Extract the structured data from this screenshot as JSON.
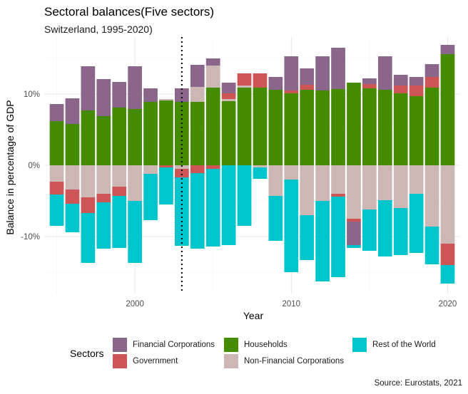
{
  "chart_data": {
    "type": "bar",
    "stacked": true,
    "title": "Sectoral balances(Five sectors)",
    "subtitle": "Switzerland, 1995-2020)",
    "xlabel": "Year",
    "ylabel": "Balance in percentage of GDP",
    "ylim": [
      -18,
      18
    ],
    "xlim": [
      1994.2,
      2020.8
    ],
    "y_ticks": [
      {
        "value": -10,
        "label": "-10%"
      },
      {
        "value": 0,
        "label": "0%"
      },
      {
        "value": 10,
        "label": "10%"
      }
    ],
    "x_ticks": [
      {
        "value": 2000,
        "label": "2000"
      },
      {
        "value": 2010,
        "label": "2010"
      },
      {
        "value": 2020,
        "label": "2020"
      }
    ],
    "vline": {
      "x": 2003,
      "style": "dotted"
    },
    "grid": true,
    "legend": {
      "title": "Sectors",
      "position": "bottom"
    },
    "caption": "Source: Eurostats, 2021",
    "x": [
      1995,
      1996,
      1997,
      1998,
      1999,
      2000,
      2001,
      2002,
      2003,
      2004,
      2005,
      2006,
      2007,
      2008,
      2009,
      2010,
      2011,
      2012,
      2013,
      2014,
      2015,
      2016,
      2017,
      2018,
      2019,
      2020
    ],
    "series": [
      {
        "name": "Households",
        "color": "#458B00",
        "values": [
          6.2,
          5.8,
          7.7,
          6.9,
          8.1,
          7.9,
          8.9,
          9.1,
          8.9,
          8.9,
          10.9,
          9.0,
          10.9,
          10.9,
          10.6,
          10.1,
          10.6,
          10.5,
          10.7,
          11.6,
          10.8,
          10.6,
          10.1,
          9.7,
          10.9,
          15.6
        ]
      },
      {
        "name": "Non-Financial Corporations",
        "color": "#CDB7B5",
        "values": [
          -2.3,
          -3.4,
          -4.5,
          -4.0,
          -3.0,
          -5.0,
          -1.2,
          0.2,
          -0.5,
          2.1,
          3.1,
          0.3,
          0.3,
          -0.3,
          -4.3,
          -2.0,
          -7.0,
          -5.0,
          -4.0,
          -7.5,
          -6.2,
          -4.9,
          -6.0,
          -4.0,
          -8.6,
          -11.0
        ]
      },
      {
        "name": "Government",
        "color": "#CD5555",
        "values": [
          -1.8,
          -2.0,
          -2.2,
          -1.2,
          -1.3,
          0,
          0,
          -0.3,
          -1.2,
          -1.1,
          -0.5,
          0.8,
          1.7,
          2.0,
          0,
          0.4,
          0.7,
          0,
          -0.4,
          -0.4,
          0.6,
          0,
          1.1,
          1.5,
          1.5,
          -3.0
        ]
      },
      {
        "name": "Financial Corporations",
        "color": "#8B668B",
        "values": [
          2.4,
          3.6,
          6.2,
          5.2,
          3.6,
          6.0,
          1.9,
          0,
          1.9,
          3.1,
          1.0,
          1.5,
          0,
          0,
          1.8,
          4.8,
          2.3,
          4.8,
          5.8,
          -3.3,
          0.8,
          4.7,
          1.5,
          1.2,
          1.8,
          1.3
        ]
      },
      {
        "name": "Rest of the World",
        "color": "#00C5CD",
        "values": [
          -4.4,
          -4.0,
          -7.0,
          -6.5,
          -7.3,
          -8.7,
          -6.5,
          -5.2,
          -9.6,
          -10.6,
          -10.9,
          -11.2,
          -8.5,
          -1.6,
          -6.3,
          -13.0,
          -6.3,
          -11.3,
          -11.3,
          -0.4,
          -5.8,
          -7.9,
          -6.6,
          -8.3,
          -5.3,
          -2.6
        ]
      }
    ]
  },
  "legend_items": [
    {
      "label": "Financial Corporations",
      "color": "#8B668B"
    },
    {
      "label": "Households",
      "color": "#458B00"
    },
    {
      "label": "Rest of the World",
      "color": "#00C5CD"
    },
    {
      "label": "Government",
      "color": "#CD5555"
    },
    {
      "label": "Non-Financial Corporations",
      "color": "#CDB7B5"
    }
  ]
}
